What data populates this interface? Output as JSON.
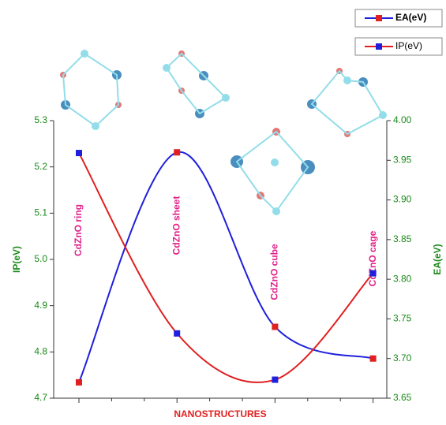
{
  "chart_data": {
    "type": "line",
    "categories": [
      "CdZnO ring",
      "CdZnO sheet",
      "CdZnO cube",
      "CdZnO cage"
    ],
    "x_label": "NANOSTRUCTURES",
    "y_label": "IP(eV)",
    "y2_label": "EA(eV)",
    "ylim": [
      4.7,
      5.3
    ],
    "yticks": [
      4.7,
      4.8,
      4.9,
      {
        "value": 5.0,
        "label": "5.0"
      },
      5.1,
      5.2,
      5.3
    ],
    "y2lim": [
      3.65,
      4.0
    ],
    "y2ticks": [
      3.65,
      {
        "value": 3.7,
        "label": "3.70"
      },
      3.75,
      {
        "value": 3.8,
        "label": "3.80"
      },
      3.85,
      {
        "value": 3.9,
        "label": "3.90"
      },
      3.95,
      {
        "value": 4.0,
        "label": "4.00"
      }
    ],
    "series": [
      {
        "name": "EA(eV)",
        "color": "#1f1fdd",
        "marker_color": "#e02020",
        "axis": "y2",
        "values": [
          3.67,
          3.96,
          3.74,
          3.7
        ]
      },
      {
        "name": "IP(eV)",
        "color": "#e02020",
        "marker_color": "#1f1fdd",
        "axis": "y",
        "values": [
          5.23,
          4.84,
          4.74,
          4.97
        ]
      }
    ],
    "smooth": true,
    "legend": "top-right"
  }
}
